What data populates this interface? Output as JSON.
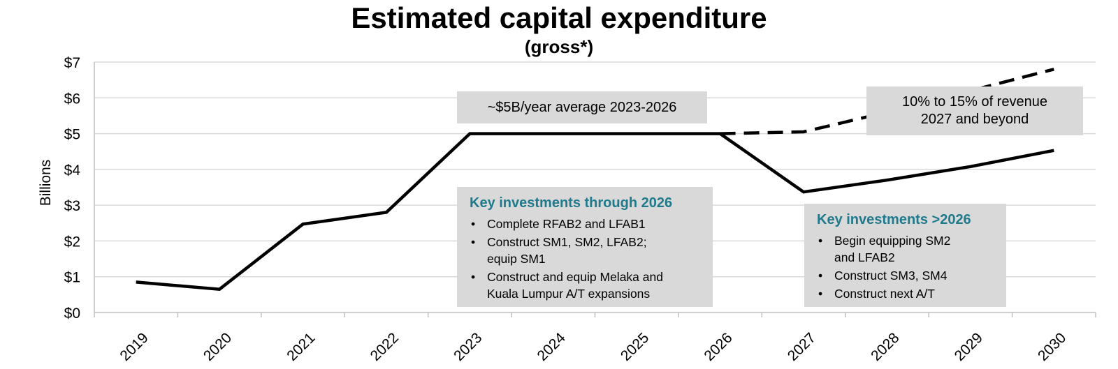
{
  "chart_data": {
    "type": "line",
    "title": "Estimated capital expenditure",
    "subtitle": "(gross*)",
    "ylabel": "Billions",
    "xlabel": "",
    "ylim": [
      0,
      7
    ],
    "yticks": [
      "$0",
      "$1",
      "$2",
      "$3",
      "$4",
      "$5",
      "$6",
      "$7"
    ],
    "categories": [
      "2019",
      "2020",
      "2021",
      "2022",
      "2023",
      "2024",
      "2025",
      "2026",
      "2027",
      "2028",
      "2029",
      "2030"
    ],
    "grid": true,
    "series": [
      {
        "style": "solid",
        "color": "#000000",
        "values": [
          0.85,
          0.65,
          2.47,
          2.8,
          5.0,
          5.0,
          5.0,
          5.0,
          3.37,
          3.7,
          4.08,
          4.53
        ]
      },
      {
        "style": "dashed",
        "color": "#000000",
        "x": [
          "2026",
          "2027",
          "2028",
          "2029",
          "2030"
        ],
        "values": [
          5.0,
          5.05,
          5.6,
          6.2,
          6.8
        ]
      }
    ],
    "annotations": {
      "average_box": "~$5B/year average 2023-2026",
      "revenue_box": [
        "10% to 15% of revenue",
        "2027 and beyond"
      ],
      "investments_2026": {
        "heading": "Key investments through 2026",
        "items": [
          [
            "Complete RFAB2 and LFAB1"
          ],
          [
            "Construct SM1, SM2, LFAB2;",
            "equip SM1"
          ],
          [
            "Construct and equip Melaka and",
            "Kuala Lumpur A/T expansions"
          ]
        ]
      },
      "investments_after": {
        "heading": "Key investments >2026",
        "items": [
          [
            "Begin equipping SM2",
            "and LFAB2"
          ],
          [
            "Construct SM3, SM4"
          ],
          [
            "Construct next A/T"
          ]
        ]
      }
    },
    "colors": {
      "grid": "#d9d9d9",
      "box": "#d9d9d9",
      "heading": "#1f7a8c",
      "line": "#000000"
    }
  }
}
